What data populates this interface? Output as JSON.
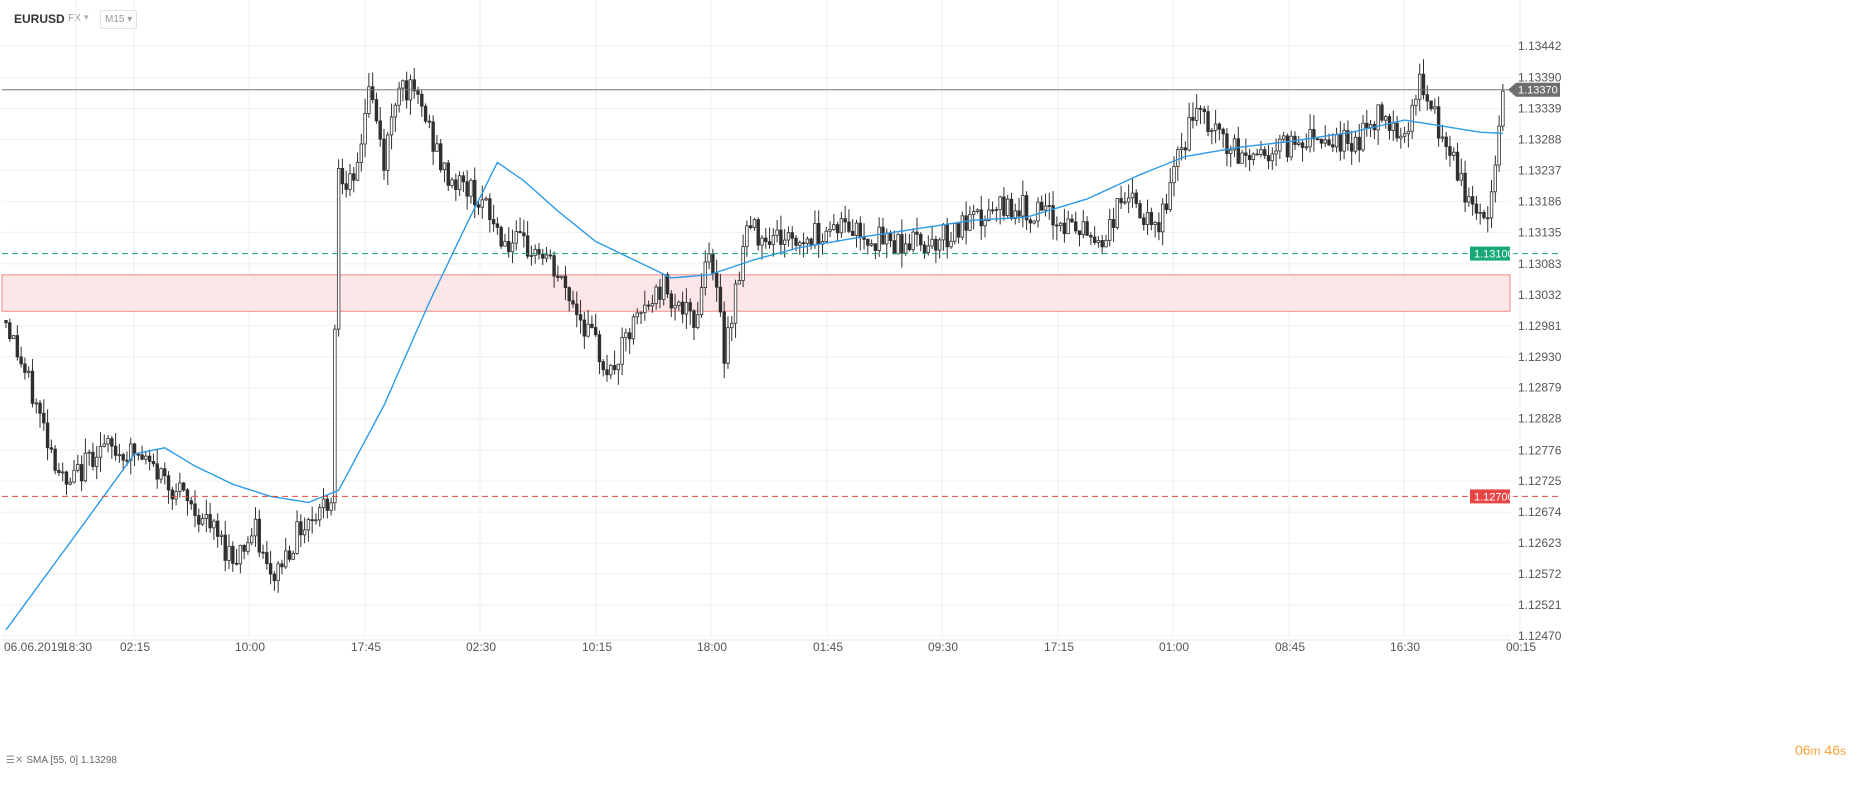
{
  "header": {
    "symbol": "EURUSD",
    "market": "FX",
    "timeframe": "M15"
  },
  "timer": {
    "min": "06",
    "min_unit": "m",
    "sec": "46",
    "sec_unit": "s"
  },
  "indicator": {
    "label": "SMA [55, 0] 1.13298"
  },
  "colors": {
    "candle": "#2f2f2f",
    "sma": "#2d9be8",
    "green_line": "#17a877",
    "red_line": "#e84646",
    "zone_fill": "#fde6e8",
    "zone_border": "#f08a8a",
    "price_line": "#777777",
    "grid": "#efefef"
  },
  "chart_data": {
    "type": "candlestick",
    "symbol": "EURUSD",
    "timeframe": "M15",
    "y_ticks": [
      "1.13442",
      "1.13390",
      "1.13339",
      "1.13288",
      "1.13237",
      "1.13186",
      "1.13135",
      "1.13083",
      "1.13032",
      "1.12981",
      "1.12930",
      "1.12879",
      "1.12828",
      "1.12776",
      "1.12725",
      "1.12674",
      "1.12623",
      "1.12572",
      "1.12521",
      "1.12470"
    ],
    "ylim": [
      1.1247,
      1.13442
    ],
    "x_ticks": [
      "06.06.2019",
      "18:30",
      "02:15",
      "10:00",
      "17:45",
      "02:30",
      "10:15",
      "18:00",
      "01:45",
      "09:30",
      "17:15",
      "01:00",
      "08:45",
      "16:30",
      "00:15"
    ],
    "current_price": {
      "value": 1.1337,
      "label": "1.13370"
    },
    "levels": [
      {
        "value": 1.131,
        "label": "1.13100",
        "style": "dashed",
        "color": "#17a877"
      },
      {
        "value": 1.127,
        "label": "1.12700",
        "style": "dashed",
        "color": "#e84646"
      }
    ],
    "zone": {
      "from": 1.13005,
      "to": 1.13065,
      "color": "#fde6e8"
    },
    "series": [
      {
        "kind": "ohlc_path",
        "close_anchors": [
          [
            0,
            1.1299
          ],
          [
            8,
            1.1285
          ],
          [
            16,
            1.1271
          ],
          [
            24,
            1.1278
          ],
          [
            34,
            1.1277
          ],
          [
            42,
            1.1273
          ],
          [
            54,
            1.1265
          ],
          [
            60,
            1.126
          ],
          [
            66,
            1.1264
          ],
          [
            70,
            1.1256
          ],
          [
            78,
            1.1265
          ],
          [
            86,
            1.127
          ],
          [
            88,
            1.1325
          ],
          [
            92,
            1.132
          ],
          [
            96,
            1.1338
          ],
          [
            100,
            1.1325
          ],
          [
            104,
            1.1339
          ],
          [
            110,
            1.1334
          ],
          [
            116,
            1.1323
          ],
          [
            124,
            1.132
          ],
          [
            132,
            1.1312
          ],
          [
            142,
            1.131
          ],
          [
            150,
            1.1302
          ],
          [
            160,
            1.129
          ],
          [
            166,
            1.1298
          ],
          [
            174,
            1.1305
          ],
          [
            182,
            1.1298
          ],
          [
            186,
            1.1312
          ],
          [
            190,
            1.1294
          ],
          [
            196,
            1.1314
          ],
          [
            210,
            1.1312
          ],
          [
            220,
            1.1315
          ],
          [
            232,
            1.1312
          ],
          [
            244,
            1.1312
          ],
          [
            256,
            1.1315
          ],
          [
            266,
            1.1318
          ],
          [
            280,
            1.1315
          ],
          [
            290,
            1.1312
          ],
          [
            296,
            1.132
          ],
          [
            304,
            1.1313
          ],
          [
            314,
            1.1333
          ],
          [
            320,
            1.133
          ],
          [
            326,
            1.1326
          ],
          [
            336,
            1.1327
          ],
          [
            346,
            1.133
          ],
          [
            356,
            1.1328
          ],
          [
            364,
            1.1333
          ],
          [
            370,
            1.133
          ],
          [
            374,
            1.1338
          ],
          [
            380,
            1.1329
          ],
          [
            386,
            1.132
          ],
          [
            392,
            1.1315
          ],
          [
            396,
            1.1336
          ]
        ]
      },
      {
        "name": "SMA [55, 0]",
        "kind": "line",
        "points": [
          [
            0,
            1.1248
          ],
          [
            20,
            1.1265
          ],
          [
            34,
            1.1277
          ],
          [
            42,
            1.1278
          ],
          [
            50,
            1.1275
          ],
          [
            60,
            1.1272
          ],
          [
            70,
            1.127
          ],
          [
            80,
            1.1269
          ],
          [
            88,
            1.1271
          ],
          [
            100,
            1.1285
          ],
          [
            112,
            1.1302
          ],
          [
            122,
            1.1315
          ],
          [
            130,
            1.1325
          ],
          [
            137,
            1.1322
          ],
          [
            146,
            1.1317
          ],
          [
            156,
            1.1312
          ],
          [
            166,
            1.1309
          ],
          [
            176,
            1.1306
          ],
          [
            186,
            1.13065
          ],
          [
            198,
            1.1309
          ],
          [
            210,
            1.1311
          ],
          [
            224,
            1.13125
          ],
          [
            240,
            1.1314
          ],
          [
            256,
            1.13155
          ],
          [
            270,
            1.1316
          ],
          [
            286,
            1.1319
          ],
          [
            300,
            1.1323
          ],
          [
            312,
            1.1326
          ],
          [
            326,
            1.13275
          ],
          [
            340,
            1.13285
          ],
          [
            356,
            1.133
          ],
          [
            370,
            1.1332
          ],
          [
            380,
            1.1331
          ],
          [
            390,
            1.133
          ],
          [
            396,
            1.13298
          ]
        ]
      }
    ]
  }
}
